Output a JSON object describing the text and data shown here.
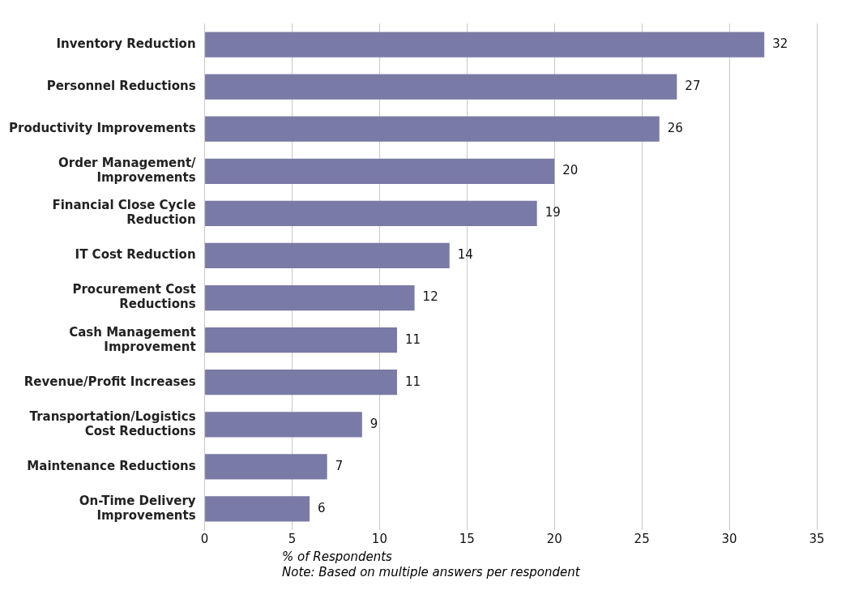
{
  "chart_data": {
    "type": "bar",
    "orientation": "horizontal",
    "categories": [
      "Inventory Reduction",
      "Personnel Reductions",
      "Productivity Improvements",
      "Order Management/\nImprovements",
      "Financial Close Cycle\nReduction",
      "IT Cost Reduction",
      "Procurement Cost\nReductions",
      "Cash Management\nImprovement",
      "Revenue/Profit Increases",
      "Transportation/Logistics\nCost Reductions",
      "Maintenance Reductions",
      "On-Time Delivery\nImprovements"
    ],
    "values": [
      32,
      27,
      26,
      20,
      19,
      14,
      12,
      11,
      11,
      9,
      7,
      6
    ],
    "color": "#7a7aa6",
    "xlim": [
      0,
      35
    ],
    "xticks": [
      0,
      5,
      10,
      15,
      20,
      25,
      30,
      35
    ],
    "grid": "x",
    "data_labels": true,
    "legend": false,
    "xlabel": "% of Respondents",
    "annotations": [
      "Note: Based on multiple answers per respondent"
    ]
  }
}
